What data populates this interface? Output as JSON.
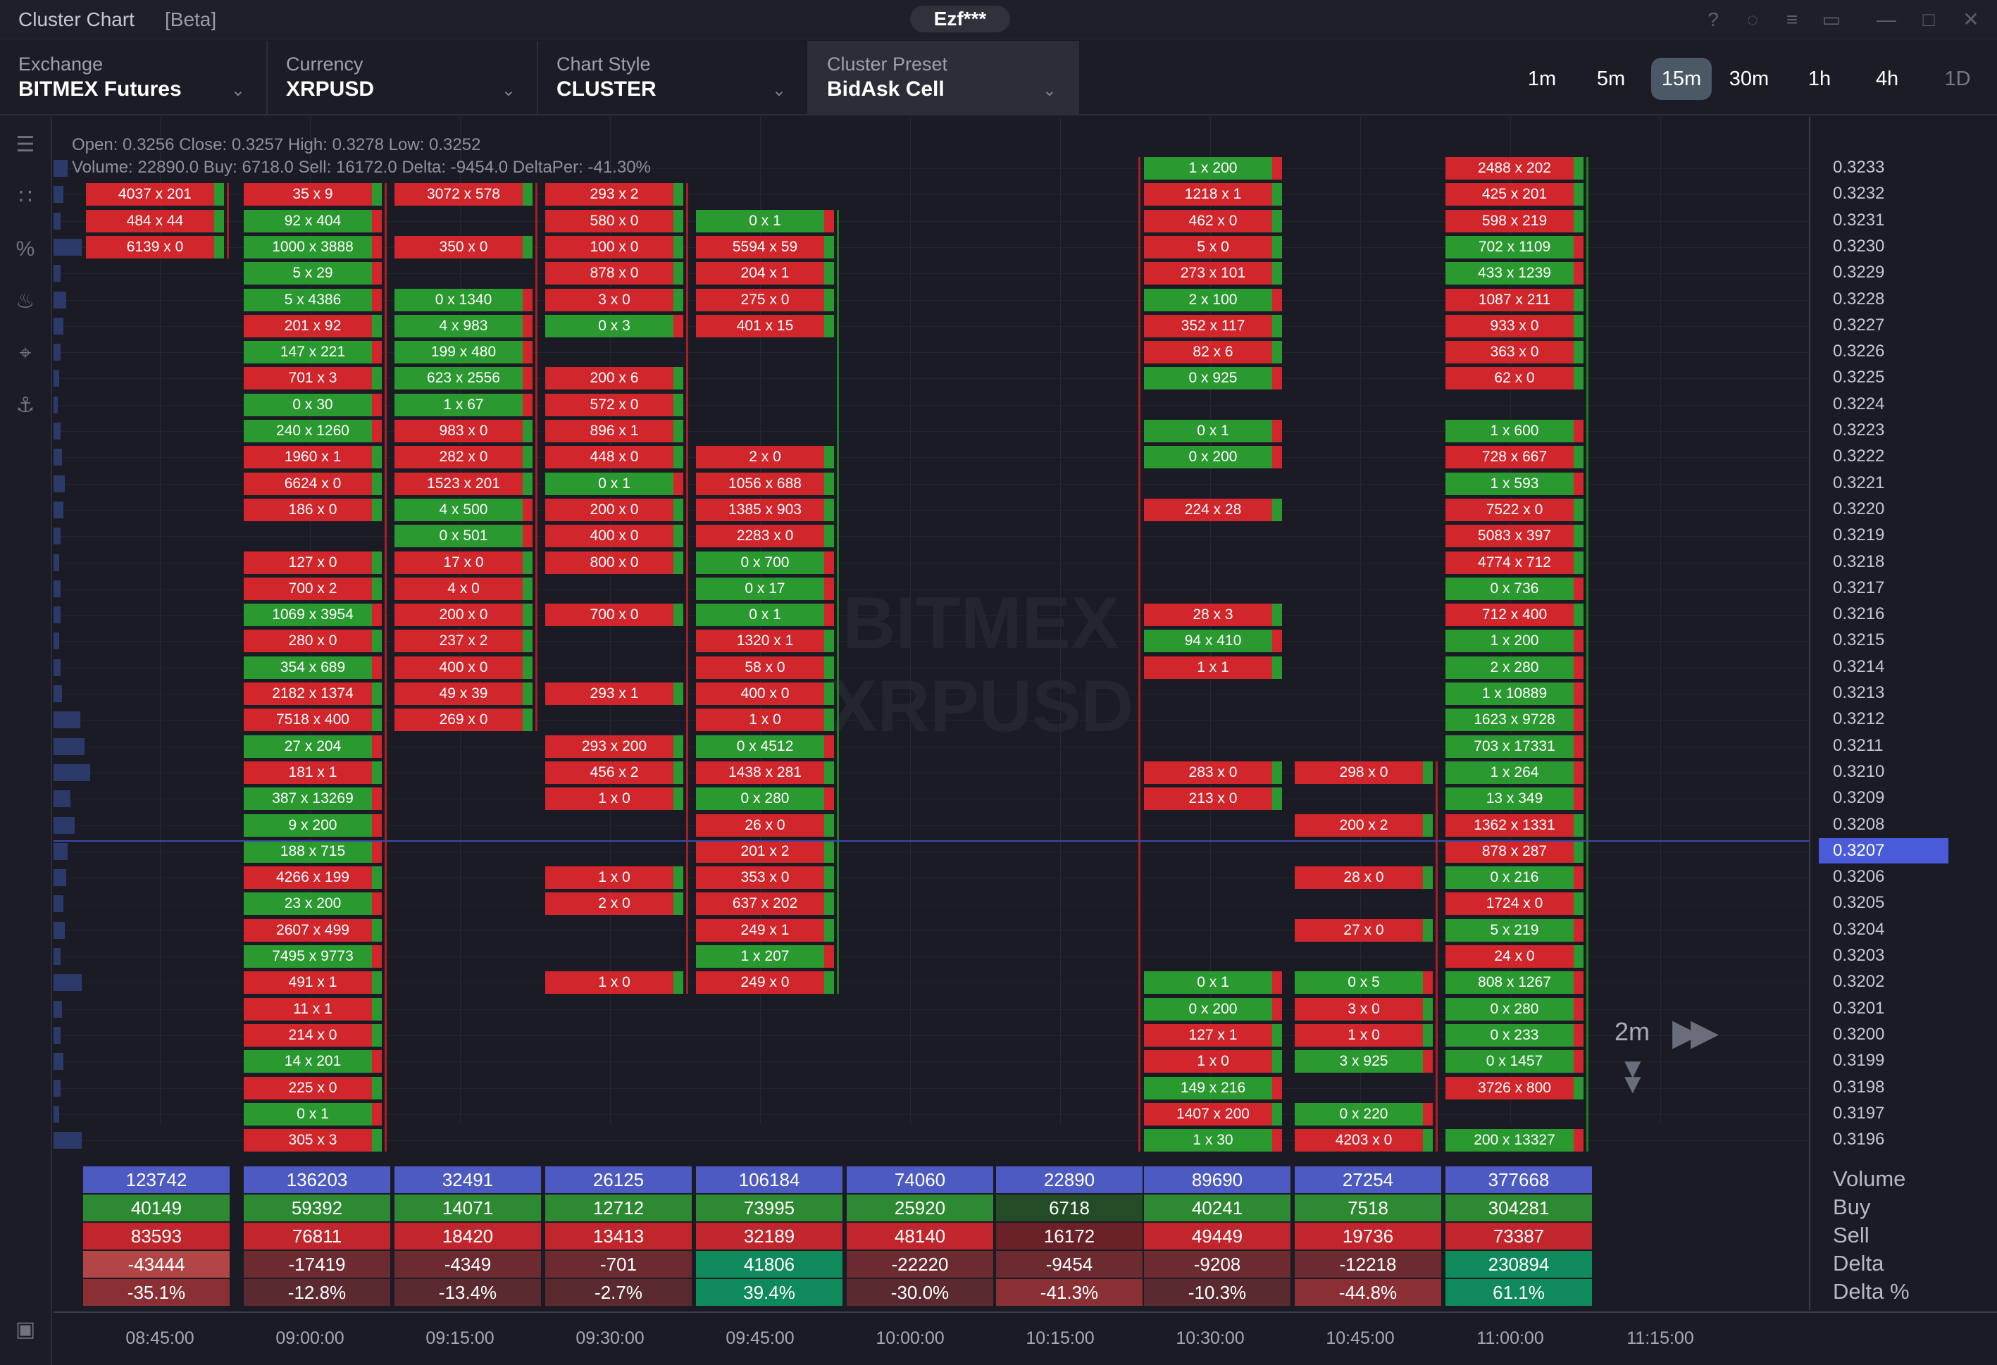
{
  "titlebar": {
    "app_title": "Cluster Chart",
    "beta": "[Beta]",
    "user": "Ezf***",
    "icons": [
      "help-icon",
      "eye-off-icon",
      "settings-sliders-icon",
      "window-link-icon",
      "minimize-icon",
      "maximize-icon",
      "close-icon"
    ]
  },
  "selectors": [
    {
      "label": "Exchange",
      "value": "BITMEX Futures"
    },
    {
      "label": "Currency",
      "value": "XRPUSD"
    },
    {
      "label": "Chart Style",
      "value": "CLUSTER"
    },
    {
      "label": "Cluster Preset",
      "value": "BidAsk Cell"
    }
  ],
  "timeframes": [
    "1m",
    "5m",
    "15m",
    "30m",
    "1h",
    "4h",
    "1D"
  ],
  "active_timeframe": "15m",
  "ohlc_line1": "Open: 0.3256 Close: 0.3257 High: 0.3278 Low: 0.3252",
  "ohlc_line2": "Volume: 22890.0 Buy: 6718.0 Sell: 16172.0 Delta: -9454.0 DeltaPer: -41.30%",
  "watermark": [
    "BITMEX",
    "XRPUSD"
  ],
  "prices": [
    "0.3233",
    "0.3232",
    "0.3231",
    "0.3230",
    "0.3229",
    "0.3228",
    "0.3227",
    "0.3226",
    "0.3225",
    "0.3224",
    "0.3223",
    "0.3222",
    "0.3221",
    "0.3220",
    "0.3219",
    "0.3218",
    "0.3217",
    "0.3216",
    "0.3215",
    "0.3214",
    "0.3213",
    "0.3212",
    "0.3211",
    "0.3210",
    "0.3209",
    "0.3208",
    "0.3207",
    "0.3206",
    "0.3205",
    "0.3204",
    "0.3203",
    "0.3202",
    "0.3201",
    "0.3200",
    "0.3199",
    "0.3198",
    "0.3197",
    "0.3196"
  ],
  "current_price": "0.3207",
  "times": [
    "08:45:00",
    "09:00:00",
    "09:15:00",
    "09:30:00",
    "09:45:00",
    "10:00:00",
    "10:15:00",
    "10:30:00",
    "10:45:00",
    "11:00:00",
    "11:15:00"
  ],
  "candle_timer": "2m",
  "summary_labels": [
    "Volume",
    "Buy",
    "Sell",
    "Delta",
    "Delta %"
  ],
  "colors": {
    "bid": "#d1262b",
    "ask": "#2a9a30",
    "accent": "#4a5bd9",
    "volume_row": "#4c5ac2"
  },
  "columns": [
    {
      "cells": [
        [
          1,
          "4037 x 201",
          "r"
        ],
        [
          2,
          "484 x 44",
          "r"
        ],
        [
          3,
          "6139 x 0",
          "r"
        ]
      ],
      "summary": {
        "volume": "123742",
        "buy": "40149",
        "sell": "83593",
        "delta": "-43444",
        "delta_pct": "-35.1%"
      }
    },
    {
      "cells": [
        [
          1,
          "35 x 9",
          "r"
        ],
        [
          2,
          "92 x 404",
          "g"
        ],
        [
          3,
          "1000 x 3888",
          "g"
        ],
        [
          4,
          "5 x 29",
          "g"
        ],
        [
          5,
          "5 x 4386",
          "g"
        ],
        [
          6,
          "201 x 92",
          "r"
        ],
        [
          7,
          "147 x 221",
          "g"
        ],
        [
          8,
          "701 x 3",
          "r"
        ],
        [
          9,
          "0 x 30",
          "g"
        ],
        [
          10,
          "240 x 1260",
          "g"
        ],
        [
          11,
          "1960 x 1",
          "r"
        ],
        [
          12,
          "6624 x 0",
          "r"
        ],
        [
          13,
          "186 x 0",
          "r"
        ],
        [
          15,
          "127 x 0",
          "r"
        ],
        [
          16,
          "700 x 2",
          "r"
        ],
        [
          17,
          "1069 x 3954",
          "g"
        ],
        [
          18,
          "280 x 0",
          "r"
        ],
        [
          19,
          "354 x 689",
          "g"
        ],
        [
          20,
          "2182 x 1374",
          "r"
        ],
        [
          21,
          "7518 x 400",
          "r"
        ],
        [
          22,
          "27 x 204",
          "g"
        ],
        [
          23,
          "181 x 1",
          "r"
        ],
        [
          24,
          "387 x 13269",
          "g"
        ],
        [
          25,
          "9 x 200",
          "g"
        ],
        [
          26,
          "188 x 715",
          "g"
        ],
        [
          27,
          "4266 x 199",
          "r"
        ],
        [
          28,
          "23 x 200",
          "g"
        ],
        [
          29,
          "2607 x 499",
          "r"
        ],
        [
          30,
          "7495 x 9773",
          "g"
        ],
        [
          31,
          "491 x 1",
          "r"
        ],
        [
          32,
          "11 x 1",
          "r"
        ],
        [
          33,
          "214 x 0",
          "r"
        ],
        [
          34,
          "14 x 201",
          "g"
        ],
        [
          35,
          "225 x 0",
          "r"
        ],
        [
          36,
          "0 x 1",
          "g"
        ],
        [
          37,
          "305 x 3",
          "r"
        ]
      ],
      "summary": {
        "volume": "136203",
        "buy": "59392",
        "sell": "76811",
        "delta": "-17419",
        "delta_pct": "-12.8%"
      }
    },
    {
      "cells": [
        [
          1,
          "3072 x 578",
          "r"
        ],
        [
          3,
          "350 x 0",
          "r"
        ],
        [
          5,
          "0 x 1340",
          "g"
        ],
        [
          6,
          "4 x 983",
          "g"
        ],
        [
          7,
          "199 x 480",
          "g"
        ],
        [
          8,
          "623 x 2556",
          "g"
        ],
        [
          9,
          "1 x 67",
          "g"
        ],
        [
          10,
          "983 x 0",
          "r"
        ],
        [
          11,
          "282 x 0",
          "r"
        ],
        [
          12,
          "1523 x 201",
          "r"
        ],
        [
          13,
          "4 x 500",
          "g"
        ],
        [
          14,
          "0 x 501",
          "g"
        ],
        [
          15,
          "17 x 0",
          "r"
        ],
        [
          16,
          "4 x 0",
          "r"
        ],
        [
          17,
          "200 x 0",
          "r"
        ],
        [
          18,
          "237 x 2",
          "r"
        ],
        [
          19,
          "400 x 0",
          "r"
        ],
        [
          20,
          "49 x 39",
          "r"
        ],
        [
          21,
          "269 x 0",
          "r"
        ]
      ],
      "summary": {
        "volume": "32491",
        "buy": "14071",
        "sell": "18420",
        "delta": "-4349",
        "delta_pct": "-13.4%"
      }
    },
    {
      "cells": [
        [
          1,
          "293 x 2",
          "r"
        ],
        [
          2,
          "580 x 0",
          "r"
        ],
        [
          3,
          "100 x 0",
          "r"
        ],
        [
          4,
          "878 x 0",
          "r"
        ],
        [
          5,
          "3 x 0",
          "r"
        ],
        [
          6,
          "0 x 3",
          "g"
        ],
        [
          8,
          "200 x 6",
          "r"
        ],
        [
          9,
          "572 x 0",
          "r"
        ],
        [
          10,
          "896 x 1",
          "r"
        ],
        [
          11,
          "448 x 0",
          "r"
        ],
        [
          12,
          "0 x 1",
          "g"
        ],
        [
          13,
          "200 x 0",
          "r"
        ],
        [
          14,
          "400 x 0",
          "r"
        ],
        [
          15,
          "800 x 0",
          "r"
        ],
        [
          17,
          "700 x 0",
          "r"
        ],
        [
          20,
          "293 x 1",
          "r"
        ],
        [
          22,
          "293 x 200",
          "r"
        ],
        [
          23,
          "456 x 2",
          "r"
        ],
        [
          24,
          "1 x 0",
          "r"
        ],
        [
          27,
          "1 x 0",
          "r"
        ],
        [
          28,
          "2 x 0",
          "r"
        ],
        [
          31,
          "1 x 0",
          "r"
        ]
      ],
      "summary": {
        "volume": "26125",
        "buy": "12712",
        "sell": "13413",
        "delta": "-701",
        "delta_pct": "-2.7%"
      }
    },
    {
      "cells": [
        [
          2,
          "0 x 1",
          "g"
        ],
        [
          3,
          "5594 x 59",
          "r"
        ],
        [
          4,
          "204 x 1",
          "r"
        ],
        [
          5,
          "275 x 0",
          "r"
        ],
        [
          6,
          "401 x 15",
          "r"
        ],
        [
          11,
          "2 x 0",
          "r"
        ],
        [
          12,
          "1056 x 688",
          "r"
        ],
        [
          13,
          "1385 x 903",
          "r"
        ],
        [
          14,
          "2283 x 0",
          "r"
        ],
        [
          15,
          "0 x 700",
          "g"
        ],
        [
          16,
          "0 x 17",
          "g"
        ],
        [
          17,
          "0 x 1",
          "g"
        ],
        [
          18,
          "1320 x 1",
          "r"
        ],
        [
          19,
          "58 x 0",
          "r"
        ],
        [
          20,
          "400 x 0",
          "r"
        ],
        [
          21,
          "1 x 0",
          "r"
        ],
        [
          22,
          "0 x 4512",
          "g"
        ],
        [
          23,
          "1438 x 281",
          "r"
        ],
        [
          24,
          "0 x 280",
          "g"
        ],
        [
          25,
          "26 x 0",
          "r"
        ],
        [
          26,
          "201 x 2",
          "r"
        ],
        [
          27,
          "353 x 0",
          "r"
        ],
        [
          28,
          "637 x 202",
          "r"
        ],
        [
          29,
          "249 x 1",
          "r"
        ],
        [
          30,
          "1 x 207",
          "g"
        ],
        [
          31,
          "249 x 0",
          "r"
        ]
      ],
      "summary": {
        "volume": "106184",
        "buy": "73995",
        "sell": "32189",
        "delta": "41806",
        "delta_pct": "39.4%"
      }
    },
    {
      "cells": [],
      "summary": {
        "volume": "74060",
        "buy": "25920",
        "sell": "48140",
        "delta": "-22220",
        "delta_pct": "-30.0%"
      }
    },
    {
      "cells": [],
      "summary": {
        "volume": "22890",
        "buy": "6718",
        "sell": "16172",
        "delta": "-9454",
        "delta_pct": "-41.3%"
      }
    },
    {
      "cells": [
        [
          0,
          "1 x 200",
          "g"
        ],
        [
          1,
          "1218 x 1",
          "r"
        ],
        [
          2,
          "462 x 0",
          "r"
        ],
        [
          3,
          "5 x 0",
          "r"
        ],
        [
          4,
          "273 x 101",
          "r"
        ],
        [
          5,
          "2 x 100",
          "g"
        ],
        [
          6,
          "352 x 117",
          "r"
        ],
        [
          7,
          "82 x 6",
          "r"
        ],
        [
          8,
          "0 x 925",
          "g"
        ],
        [
          10,
          "0 x 1",
          "g"
        ],
        [
          11,
          "0 x 200",
          "g"
        ],
        [
          13,
          "224 x 28",
          "r"
        ],
        [
          17,
          "28 x 3",
          "r"
        ],
        [
          18,
          "94 x 410",
          "g"
        ],
        [
          19,
          "1 x 1",
          "r"
        ],
        [
          23,
          "283 x 0",
          "r"
        ],
        [
          24,
          "213 x 0",
          "r"
        ],
        [
          31,
          "0 x 1",
          "g"
        ],
        [
          32,
          "0 x 200",
          "g"
        ],
        [
          33,
          "127 x 1",
          "r"
        ],
        [
          34,
          "1 x 0",
          "r"
        ],
        [
          35,
          "149 x 216",
          "g"
        ],
        [
          36,
          "1407 x 200",
          "r"
        ],
        [
          37,
          "1 x 30",
          "g"
        ]
      ],
      "summary": {
        "volume": "89690",
        "buy": "40241",
        "sell": "49449",
        "delta": "-9208",
        "delta_pct": "-10.3%"
      }
    },
    {
      "cells": [
        [
          23,
          "298 x 0",
          "r"
        ],
        [
          25,
          "200 x 2",
          "r"
        ],
        [
          27,
          "28 x 0",
          "r"
        ],
        [
          29,
          "27 x 0",
          "r"
        ],
        [
          31,
          "0 x 5",
          "g"
        ],
        [
          32,
          "3 x 0",
          "r"
        ],
        [
          33,
          "1 x 0",
          "r"
        ],
        [
          34,
          "3 x 925",
          "g"
        ],
        [
          36,
          "0 x 220",
          "g"
        ],
        [
          37,
          "4203 x 0",
          "r"
        ]
      ],
      "summary": {
        "volume": "27254",
        "buy": "7518",
        "sell": "19736",
        "delta": "-12218",
        "delta_pct": "-44.8%"
      }
    },
    {
      "cells": [
        [
          0,
          "2488 x 202",
          "r"
        ],
        [
          1,
          "425 x 201",
          "r"
        ],
        [
          2,
          "598 x 219",
          "r"
        ],
        [
          3,
          "702 x 1109",
          "g"
        ],
        [
          4,
          "433 x 1239",
          "g"
        ],
        [
          5,
          "1087 x 211",
          "r"
        ],
        [
          6,
          "933 x 0",
          "r"
        ],
        [
          7,
          "363 x 0",
          "r"
        ],
        [
          8,
          "62 x 0",
          "r"
        ],
        [
          10,
          "1 x 600",
          "g"
        ],
        [
          11,
          "728 x 667",
          "r"
        ],
        [
          12,
          "1 x 593",
          "g"
        ],
        [
          13,
          "7522 x 0",
          "r"
        ],
        [
          14,
          "5083 x 397",
          "r"
        ],
        [
          15,
          "4774 x 712",
          "r"
        ],
        [
          16,
          "0 x 736",
          "g"
        ],
        [
          17,
          "712 x 400",
          "r"
        ],
        [
          18,
          "1 x 200",
          "g"
        ],
        [
          19,
          "2 x 280",
          "g"
        ],
        [
          20,
          "1 x 10889",
          "g"
        ],
        [
          21,
          "1623 x 9728",
          "g"
        ],
        [
          22,
          "703 x 17331",
          "g"
        ],
        [
          23,
          "1 x 264",
          "g"
        ],
        [
          24,
          "13 x 349",
          "g"
        ],
        [
          25,
          "1362 x 1331",
          "r"
        ],
        [
          26,
          "878 x 287",
          "r"
        ],
        [
          27,
          "0 x 216",
          "g"
        ],
        [
          28,
          "1724 x 0",
          "r"
        ],
        [
          29,
          "5 x 219",
          "g"
        ],
        [
          30,
          "24 x 0",
          "r"
        ],
        [
          31,
          "808 x 1267",
          "g"
        ],
        [
          32,
          "0 x 280",
          "g"
        ],
        [
          33,
          "0 x 233",
          "g"
        ],
        [
          34,
          "0 x 1457",
          "g"
        ],
        [
          35,
          "3726 x 800",
          "r"
        ],
        [
          37,
          "200 x 13327",
          "g"
        ]
      ],
      "summary": {
        "volume": "377668",
        "buy": "304281",
        "sell": "73387",
        "delta": "230894",
        "delta_pct": "61.1%"
      }
    }
  ]
}
